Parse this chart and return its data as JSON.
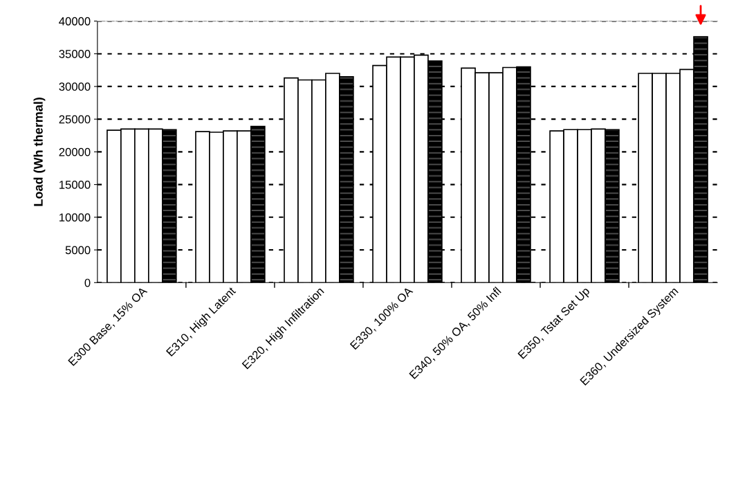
{
  "chart_data": {
    "type": "bar",
    "ylabel": "Load (Wh thermal)",
    "categories": [
      "E300 Base, 15% OA",
      "E310, High Latent",
      "E320, High Infiltration",
      "E330, 100% OA",
      "E340, 50% OA, 50% Infl",
      "E350, Tstat Set Up",
      "E360, Undersized System"
    ],
    "series": [
      {
        "color": "#ffffff",
        "values": [
          23300,
          23100,
          31300,
          33200,
          32800,
          23200,
          32000
        ]
      },
      {
        "color": "#ffffff",
        "values": [
          23500,
          23000,
          31000,
          34500,
          32100,
          23400,
          32000
        ]
      },
      {
        "color": "#ffffff",
        "values": [
          23500,
          23200,
          31000,
          34500,
          32100,
          23400,
          32000
        ]
      },
      {
        "color": "#ffffff",
        "values": [
          23500,
          23200,
          32000,
          34800,
          32900,
          23500,
          32600
        ]
      },
      {
        "color": "#000000",
        "values": [
          23400,
          23900,
          31500,
          33900,
          33000,
          23400,
          37600
        ]
      }
    ],
    "ylim": [
      0,
      40000
    ],
    "yticks": [
      0,
      5000,
      10000,
      15000,
      20000,
      25000,
      30000,
      35000,
      40000
    ],
    "grid": "y",
    "legend": false
  }
}
